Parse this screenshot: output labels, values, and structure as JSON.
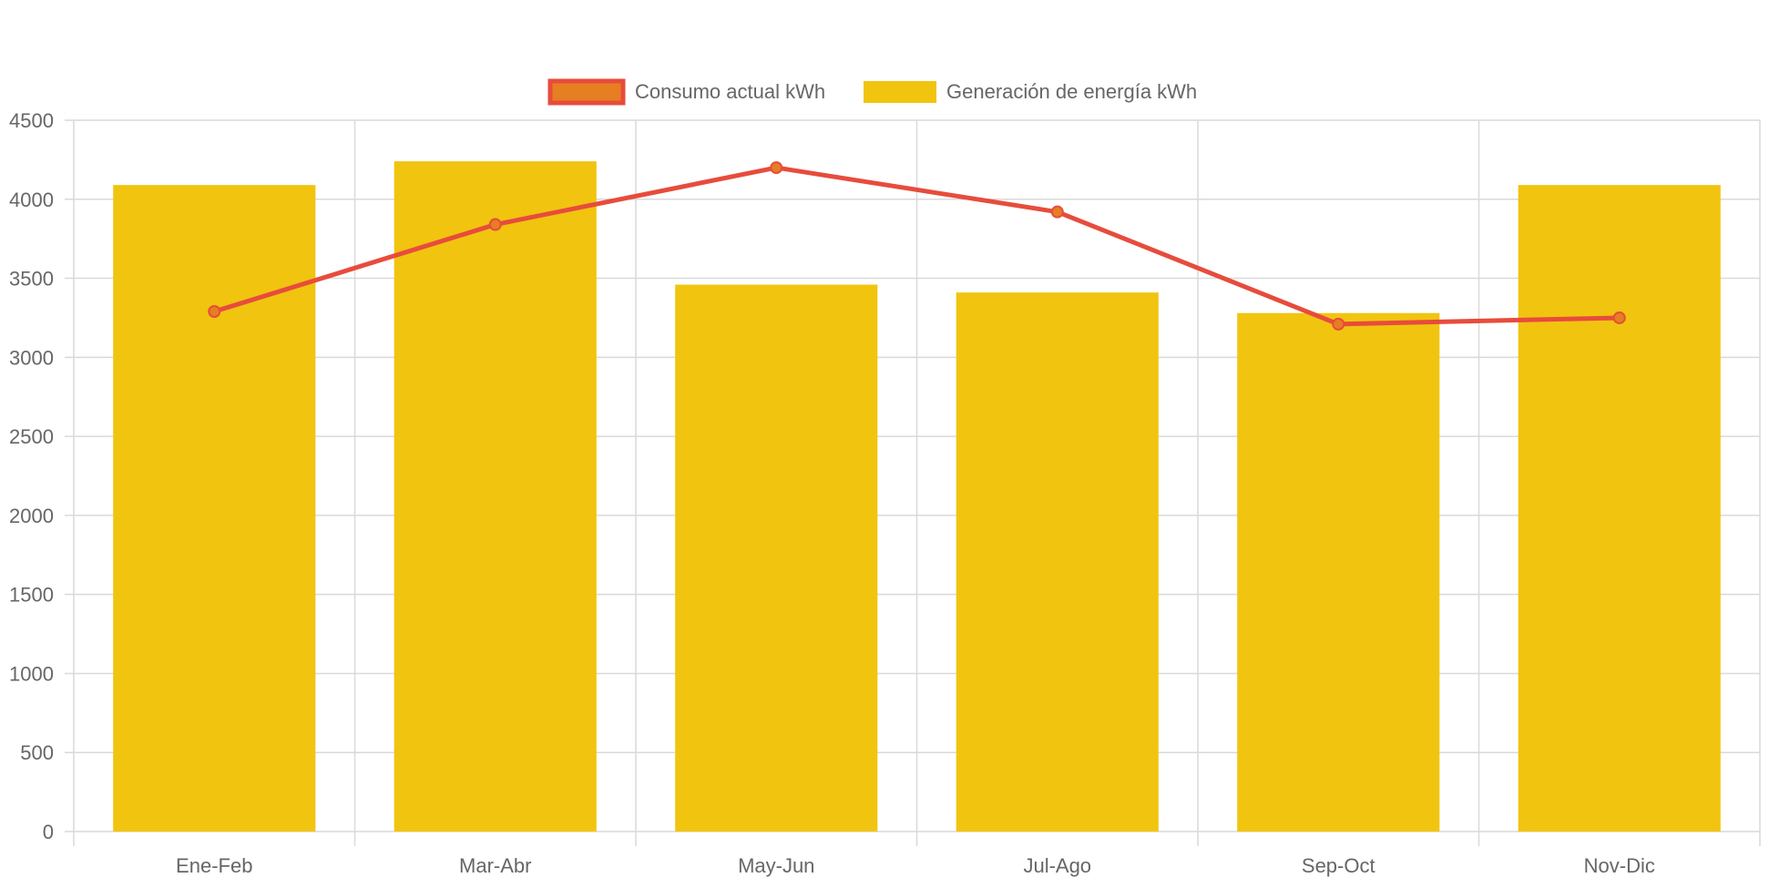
{
  "chart_data": {
    "type": "bar",
    "title": "",
    "xlabel": "",
    "ylabel": "",
    "categories": [
      "Ene-Feb",
      "Mar-Abr",
      "May-Jun",
      "Jul-Ago",
      "Sep-Oct",
      "Nov-Dic"
    ],
    "ylim": [
      0,
      4500
    ],
    "yticks": [
      0,
      500,
      1000,
      1500,
      2000,
      2500,
      3000,
      3500,
      4000,
      4500
    ],
    "grid": true,
    "legend_position": "top-center",
    "series": [
      {
        "name": "Consumo actual kWh",
        "type": "line",
        "color": "#e74c3c",
        "marker_color": "#e67e22",
        "values": [
          3290,
          3840,
          4200,
          3920,
          3210,
          3250
        ]
      },
      {
        "name": "Generación de energía kWh",
        "type": "bar",
        "color": "#f1c40f",
        "values": [
          4090,
          4240,
          3460,
          3410,
          3280,
          4090
        ]
      }
    ]
  }
}
